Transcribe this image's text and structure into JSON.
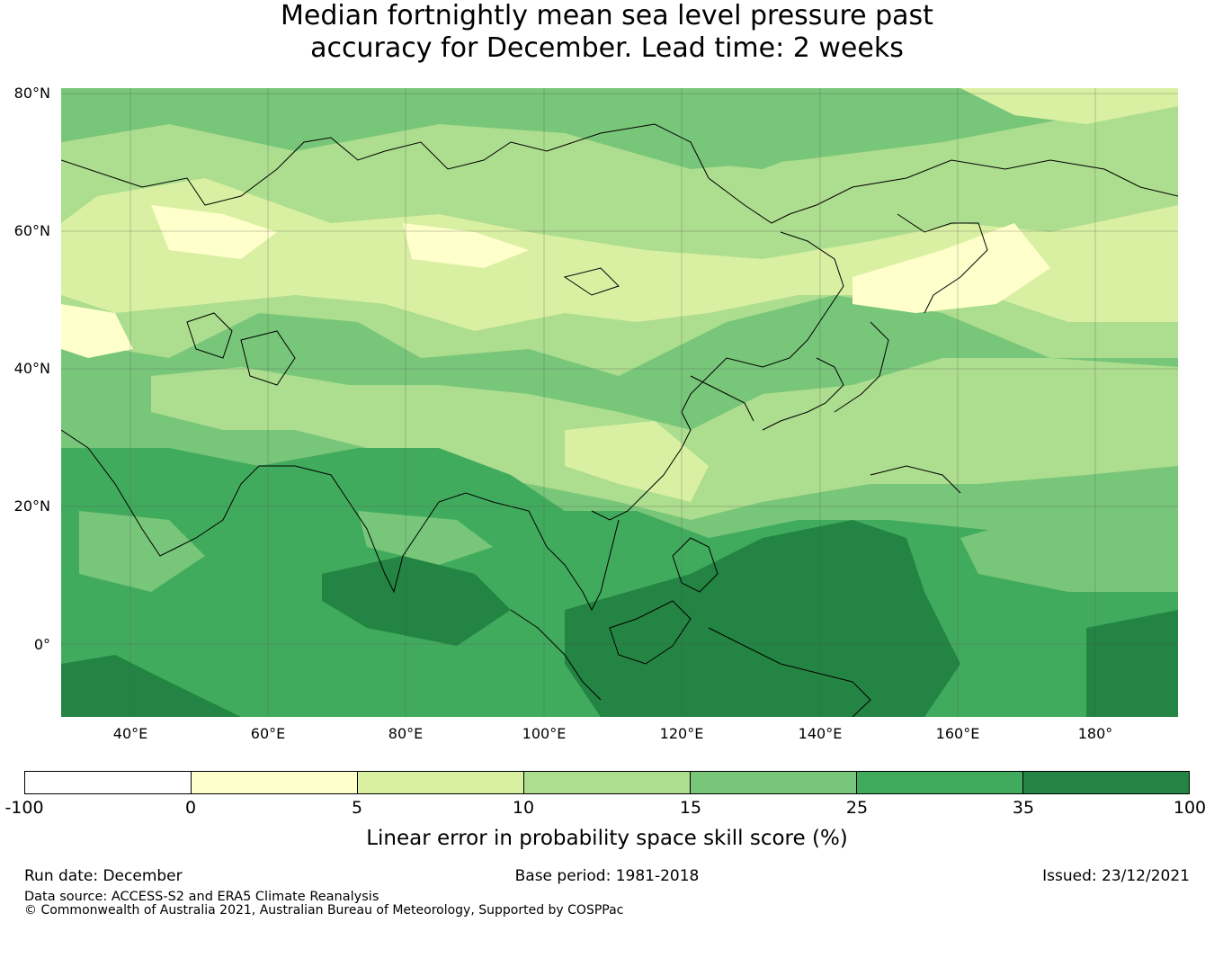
{
  "title": {
    "line1": "Median fortnightly mean sea level pressure past",
    "line2": "accuracy for December. Lead time: 2 weeks"
  },
  "map": {
    "lat_labels": [
      "80°N",
      "60°N",
      "40°N",
      "20°N",
      "0°"
    ],
    "lon_labels": [
      "40°E",
      "60°E",
      "80°E",
      "100°E",
      "120°E",
      "140°E",
      "160°E",
      "180°"
    ]
  },
  "colorbar": {
    "ticks": [
      "-100",
      "0",
      "5",
      "10",
      "15",
      "25",
      "35",
      "100"
    ],
    "colors": [
      "#ffffff",
      "#ffffcc",
      "#d9f0a3",
      "#addd8e",
      "#78c679",
      "#41ab5d",
      "#238443"
    ],
    "label": "Linear error in probability space skill score (%)"
  },
  "footer": {
    "run_date": "Run date: December",
    "base_period": "Base period: 1981-2018",
    "issued": "Issued: 23/12/2021",
    "data_source": "Data source: ACCESS-S2 and ERA5 Climate Reanalysis",
    "copyright": "© Commonwealth of Australia 2021, Australian Bureau of Meteorology, Supported by COSPPac"
  }
}
